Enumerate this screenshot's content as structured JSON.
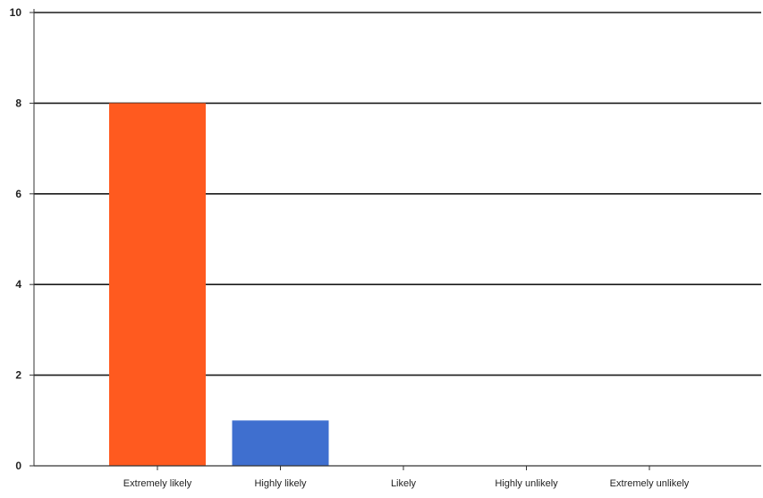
{
  "chart_data": {
    "type": "bar",
    "categories": [
      "Extremely likely",
      "Highly likely",
      "Likely",
      "Highly unlikely",
      "Extremely unlikely"
    ],
    "values": [
      8,
      1,
      0,
      0,
      0
    ],
    "bar_colors": [
      "#ff5a1f",
      "#3f6fcf",
      "#3f6fcf",
      "#3f6fcf",
      "#3f6fcf"
    ],
    "title": "",
    "xlabel": "",
    "ylabel": "",
    "ylim": [
      0,
      10
    ],
    "yticks": [
      "0",
      "2",
      "4",
      "6",
      "8",
      "10"
    ],
    "grid": true,
    "legend": "none"
  },
  "colors": {
    "primary_bar": "#ff5a1f",
    "secondary_bar": "#3f6fcf",
    "gridline": "#1a1a1a",
    "axis": "#333333"
  }
}
